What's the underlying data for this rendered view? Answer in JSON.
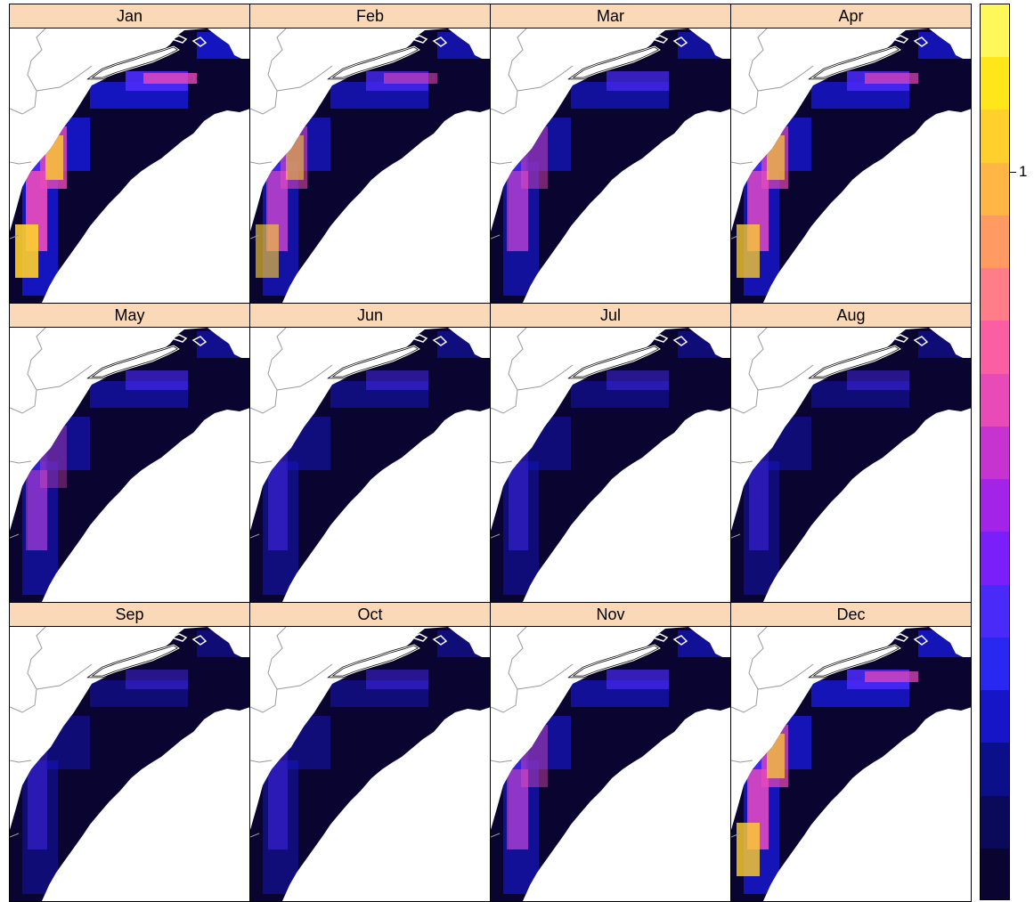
{
  "panels": [
    "Jan",
    "Feb",
    "Mar",
    "Apr",
    "May",
    "Jun",
    "Jul",
    "Aug",
    "Sep",
    "Oct",
    "Nov",
    "Dec"
  ],
  "legend": {
    "tick_label": "1",
    "colors": [
      "#0a0530",
      "#0b0a5a",
      "#0c0f8a",
      "#1616c8",
      "#2828f0",
      "#4a2af8",
      "#7a1efa",
      "#a324e8",
      "#c733d0",
      "#e84ab8",
      "#fb5ea3",
      "#ff7d88",
      "#ff9a62",
      "#ffb645",
      "#ffd02c",
      "#ffe61a",
      "#fff85a"
    ]
  },
  "colors": {
    "background": "#0a0530",
    "strip": "#fbd9b8",
    "hot": "#ffd02c",
    "warm": "#e84ab8",
    "mid": "#4a2af8",
    "low": "#1616c8"
  },
  "intensity": {
    "Jan": 1.0,
    "Feb": 0.7,
    "Mar": 0.6,
    "Apr": 0.85,
    "May": 0.45,
    "Jun": 0.25,
    "Jul": 0.2,
    "Aug": 0.18,
    "Sep": 0.18,
    "Oct": 0.22,
    "Nov": 0.55,
    "Dec": 0.9
  }
}
